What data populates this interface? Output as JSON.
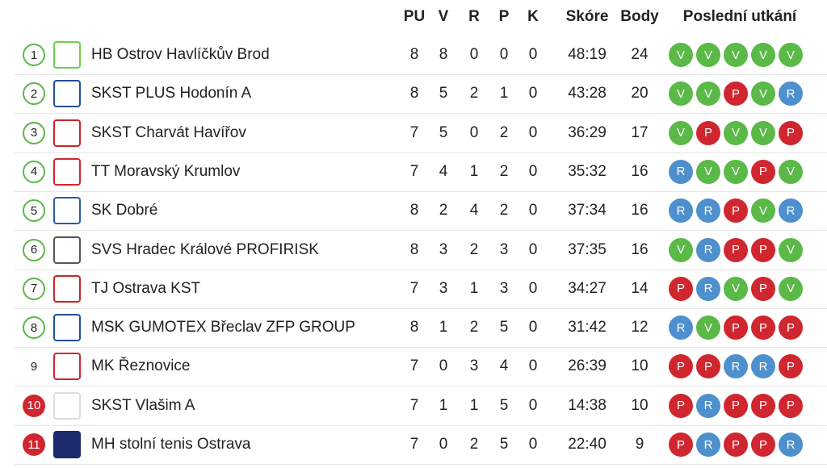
{
  "table": {
    "columns": [
      "PU",
      "V",
      "R",
      "P",
      "K",
      "Skóre",
      "Body",
      "Poslední utkání"
    ],
    "form_colors": {
      "V": "#5ab947",
      "R": "#4e8fcd",
      "P": "#d0262f"
    },
    "rows": [
      [
        "1",
        "HB Ostrov Havlíčkův Brod",
        "8",
        "8",
        "0",
        "0",
        "0",
        "48:19",
        "24",
        [
          "V",
          "V",
          "V",
          "V",
          "V"
        ]
      ],
      [
        "2",
        "SKST PLUS Hodonín A",
        "8",
        "5",
        "2",
        "1",
        "0",
        "43:28",
        "20",
        [
          "V",
          "V",
          "P",
          "V",
          "R"
        ]
      ],
      [
        "3",
        "SKST Charvát Havířov",
        "7",
        "5",
        "0",
        "2",
        "0",
        "36:29",
        "17",
        [
          "V",
          "P",
          "V",
          "V",
          "P"
        ]
      ],
      [
        "4",
        "TT Moravský Krumlov",
        "7",
        "4",
        "1",
        "2",
        "0",
        "35:32",
        "16",
        [
          "R",
          "V",
          "V",
          "P",
          "V"
        ]
      ],
      [
        "5",
        "SK Dobré",
        "8",
        "2",
        "4",
        "2",
        "0",
        "37:34",
        "16",
        [
          "R",
          "R",
          "P",
          "V",
          "R"
        ]
      ],
      [
        "6",
        "SVS Hradec Králové PROFIRISK",
        "8",
        "3",
        "2",
        "3",
        "0",
        "37:35",
        "16",
        [
          "V",
          "R",
          "P",
          "P",
          "V"
        ]
      ],
      [
        "7",
        "TJ Ostrava KST",
        "7",
        "3",
        "1",
        "3",
        "0",
        "34:27",
        "14",
        [
          "P",
          "R",
          "V",
          "P",
          "V"
        ]
      ],
      [
        "8",
        "MSK GUMOTEX Břeclav ZFP GROUP",
        "8",
        "1",
        "2",
        "5",
        "0",
        "31:42",
        "12",
        [
          "R",
          "V",
          "P",
          "P",
          "P"
        ]
      ],
      [
        "9",
        "MK Řeznovice",
        "7",
        "0",
        "3",
        "4",
        "0",
        "26:39",
        "10",
        [
          "P",
          "P",
          "R",
          "R",
          "P"
        ]
      ],
      [
        "10",
        "SKST Vlašim A",
        "7",
        "1",
        "1",
        "5",
        "0",
        "14:38",
        "10",
        [
          "P",
          "R",
          "P",
          "P",
          "P"
        ]
      ],
      [
        "11",
        "MH stolní tenis Ostrava",
        "7",
        "0",
        "2",
        "5",
        "0",
        "22:40",
        "9",
        [
          "P",
          "R",
          "P",
          "P",
          "R"
        ]
      ]
    ]
  }
}
